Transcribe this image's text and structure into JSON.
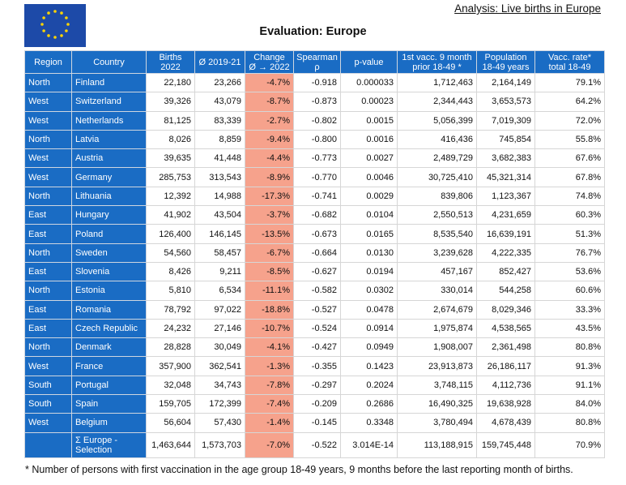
{
  "header": {
    "analysis": "Analysis: Live births in Europe",
    "title": "Evaluation: Europe"
  },
  "table": {
    "columns": [
      "Region",
      "Country",
      "Births\n2022",
      "Ø 2019-21",
      "Change\nØ → 2022",
      "Spearman\nρ",
      "p-value",
      "1st vacc. 9 month\nprior 18-49 *",
      "Population\n18-49 years",
      "Vacc. rate*\ntotal 18-49"
    ],
    "rows": [
      [
        "North",
        "Finland",
        "22,180",
        "23,266",
        "-4.7%",
        "-0.918",
        "0.000033",
        "1,712,463",
        "2,164,149",
        "79.1%"
      ],
      [
        "West",
        "Switzerland",
        "39,326",
        "43,079",
        "-8.7%",
        "-0.873",
        "0.00023",
        "2,344,443",
        "3,653,573",
        "64.2%"
      ],
      [
        "West",
        "Netherlands",
        "81,125",
        "83,339",
        "-2.7%",
        "-0.802",
        "0.0015",
        "5,056,399",
        "7,019,309",
        "72.0%"
      ],
      [
        "North",
        "Latvia",
        "8,026",
        "8,859",
        "-9.4%",
        "-0.800",
        "0.0016",
        "416,436",
        "745,854",
        "55.8%"
      ],
      [
        "West",
        "Austria",
        "39,635",
        "41,448",
        "-4.4%",
        "-0.773",
        "0.0027",
        "2,489,729",
        "3,682,383",
        "67.6%"
      ],
      [
        "West",
        "Germany",
        "285,753",
        "313,543",
        "-8.9%",
        "-0.770",
        "0.0046",
        "30,725,410",
        "45,321,314",
        "67.8%"
      ],
      [
        "North",
        "Lithuania",
        "12,392",
        "14,988",
        "-17.3%",
        "-0.741",
        "0.0029",
        "839,806",
        "1,123,367",
        "74.8%"
      ],
      [
        "East",
        "Hungary",
        "41,902",
        "43,504",
        "-3.7%",
        "-0.682",
        "0.0104",
        "2,550,513",
        "4,231,659",
        "60.3%"
      ],
      [
        "East",
        "Poland",
        "126,400",
        "146,145",
        "-13.5%",
        "-0.673",
        "0.0165",
        "8,535,540",
        "16,639,191",
        "51.3%"
      ],
      [
        "North",
        "Sweden",
        "54,560",
        "58,457",
        "-6.7%",
        "-0.664",
        "0.0130",
        "3,239,628",
        "4,222,335",
        "76.7%"
      ],
      [
        "East",
        "Slovenia",
        "8,426",
        "9,211",
        "-8.5%",
        "-0.627",
        "0.0194",
        "457,167",
        "852,427",
        "53.6%"
      ],
      [
        "North",
        "Estonia",
        "5,810",
        "6,534",
        "-11.1%",
        "-0.582",
        "0.0302",
        "330,014",
        "544,258",
        "60.6%"
      ],
      [
        "East",
        "Romania",
        "78,792",
        "97,022",
        "-18.8%",
        "-0.527",
        "0.0478",
        "2,674,679",
        "8,029,346",
        "33.3%"
      ],
      [
        "East",
        "Czech Republic",
        "24,232",
        "27,146",
        "-10.7%",
        "-0.524",
        "0.0914",
        "1,975,874",
        "4,538,565",
        "43.5%"
      ],
      [
        "North",
        "Denmark",
        "28,828",
        "30,049",
        "-4.1%",
        "-0.427",
        "0.0949",
        "1,908,007",
        "2,361,498",
        "80.8%"
      ],
      [
        "West",
        "France",
        "357,900",
        "362,541",
        "-1.3%",
        "-0.355",
        "0.1423",
        "23,913,873",
        "26,186,117",
        "91.3%"
      ],
      [
        "South",
        "Portugal",
        "32,048",
        "34,743",
        "-7.8%",
        "-0.297",
        "0.2024",
        "3,748,115",
        "4,112,736",
        "91.1%"
      ],
      [
        "South",
        "Spain",
        "159,705",
        "172,399",
        "-7.4%",
        "-0.209",
        "0.2686",
        "16,490,325",
        "19,638,928",
        "84.0%"
      ],
      [
        "West",
        "Belgium",
        "56,604",
        "57,430",
        "-1.4%",
        "-0.145",
        "0.3348",
        "3,780,494",
        "4,678,439",
        "80.8%"
      ]
    ],
    "total": [
      "Σ Europe -\nSelection",
      "1,463,644",
      "1,573,703",
      "-7.0%",
      "-0.522",
      "3.014E-14",
      "113,188,915",
      "159,745,448",
      "70.9%"
    ]
  },
  "footnote": "* Number of persons with first vaccination in the age group 18-49 years, 9 months before the last reporting month of births."
}
